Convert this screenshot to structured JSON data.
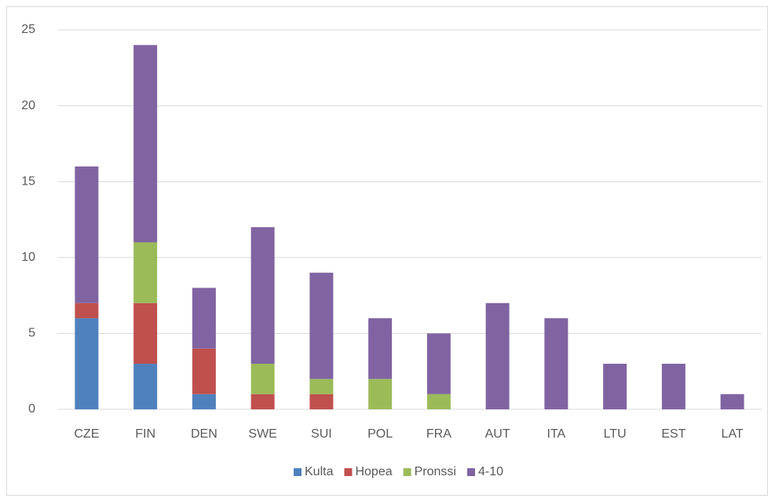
{
  "chart_data": {
    "type": "stacked_bar",
    "categories": [
      "CZE",
      "FIN",
      "DEN",
      "SWE",
      "SUI",
      "POL",
      "FRA",
      "AUT",
      "ITA",
      "LTU",
      "EST",
      "LAT"
    ],
    "series": [
      {
        "name": "Kulta",
        "color": "#4f81bd",
        "values": [
          6,
          3,
          1,
          0,
          0,
          0,
          0,
          0,
          0,
          0,
          0,
          0
        ]
      },
      {
        "name": "Hopea",
        "color": "#c0504d",
        "values": [
          1,
          4,
          3,
          1,
          1,
          0,
          0,
          0,
          0,
          0,
          0,
          0
        ]
      },
      {
        "name": "Pronssi",
        "color": "#9bbb59",
        "values": [
          0,
          4,
          0,
          2,
          1,
          2,
          1,
          0,
          0,
          0,
          0,
          0
        ]
      },
      {
        "name": "4-10",
        "color": "#8064a2",
        "values": [
          9,
          13,
          4,
          9,
          7,
          4,
          4,
          7,
          6,
          3,
          3,
          1
        ]
      }
    ],
    "ylim": [
      0,
      25
    ],
    "yticks": [
      0,
      5,
      10,
      15,
      20,
      25
    ],
    "grid": true,
    "legend": "bottom"
  }
}
